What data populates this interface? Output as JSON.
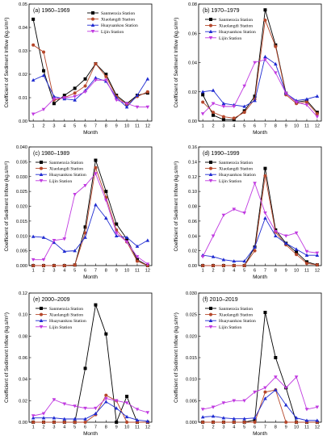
{
  "figure": {
    "series_styles": {
      "Sanmenxia Station": {
        "color": "#000000",
        "marker": "square"
      },
      "Xiaolangdi Station": {
        "color": "#b5462a",
        "marker": "circle"
      },
      "Huayuankou Station": {
        "color": "#1f2bd1",
        "marker": "triangle-up"
      },
      "Lijin Station": {
        "color": "#c03ae0",
        "marker": "triangle-down"
      }
    }
  },
  "chart_data": [
    {
      "type": "line",
      "title": "(a) 1960–1969",
      "xlabel": "Month",
      "ylabel": "Coefficient of Sediment Inflow (kg.s/m⁶)",
      "x": [
        1,
        2,
        3,
        4,
        5,
        6,
        7,
        8,
        9,
        10,
        11,
        12
      ],
      "ylim": [
        0,
        0.05
      ],
      "yticks": [
        "0.00",
        "0.01",
        "0.02",
        "0.03",
        "0.04",
        "0.05"
      ],
      "legend": "top-right",
      "series": [
        {
          "name": "Sanmenxia Station",
          "values": [
            0.0435,
            0.0215,
            0.0075,
            0.011,
            0.014,
            0.018,
            0.0245,
            0.02,
            0.011,
            0.0075,
            0.011,
            0.012
          ]
        },
        {
          "name": "Xiaolangdi Station",
          "values": [
            0.0325,
            0.0295,
            0.009,
            0.01,
            0.012,
            0.015,
            0.0245,
            0.019,
            0.0105,
            0.007,
            0.0105,
            0.0125
          ]
        },
        {
          "name": "Huayuankou Station",
          "values": [
            0.0175,
            0.0195,
            0.0105,
            0.0095,
            0.009,
            0.013,
            0.0185,
            0.017,
            0.01,
            0.006,
            0.011,
            0.018
          ]
        },
        {
          "name": "Lijin Station",
          "values": [
            0.003,
            0.005,
            0.0095,
            0.01,
            0.0105,
            0.0125,
            0.0175,
            0.0175,
            0.009,
            0.0075,
            0.006,
            0.006
          ]
        }
      ]
    },
    {
      "type": "line",
      "title": "(b) 1970–1979",
      "xlabel": "Month",
      "ylabel": "Coefficient of Sediment Inflow (kg.s/m⁶)",
      "x": [
        1,
        2,
        3,
        4,
        5,
        6,
        7,
        8,
        9,
        10,
        11,
        12
      ],
      "ylim": [
        0,
        0.08
      ],
      "yticks": [
        "0.00",
        "0.02",
        "0.04",
        "0.06",
        "0.08"
      ],
      "legend": "top-left",
      "series": [
        {
          "name": "Sanmenxia Station",
          "values": [
            0.018,
            0.004,
            0.001,
            0.001,
            0.007,
            0.017,
            0.076,
            0.052,
            0.019,
            0.013,
            0.014,
            0.006
          ]
        },
        {
          "name": "Xiaolangdi Station",
          "values": [
            0.013,
            0.006,
            0.003,
            0.002,
            0.006,
            0.015,
            0.069,
            0.051,
            0.018,
            0.012,
            0.013,
            0.005
          ]
        },
        {
          "name": "Huayuankou Station",
          "values": [
            0.02,
            0.021,
            0.012,
            0.011,
            0.01,
            0.014,
            0.044,
            0.039,
            0.019,
            0.014,
            0.015,
            0.017
          ]
        },
        {
          "name": "Lijin Station",
          "values": [
            0.005,
            0.012,
            0.01,
            0.01,
            0.024,
            0.04,
            0.042,
            0.033,
            0.019,
            0.013,
            0.011,
            0.003
          ]
        }
      ]
    },
    {
      "type": "line",
      "title": "(c) 1980–1989",
      "xlabel": "Month",
      "ylabel": "Coefficient of Sediment Inflow (kg.s/m⁶)",
      "x": [
        1,
        2,
        3,
        4,
        5,
        6,
        7,
        8,
        9,
        10,
        11,
        12
      ],
      "ylim": [
        0,
        0.04
      ],
      "yticks": [
        "0.000",
        "0.005",
        "0.010",
        "0.015",
        "0.020",
        "0.025",
        "0.030",
        "0.035",
        "0.040"
      ],
      "legend": "top-left",
      "series": [
        {
          "name": "Sanmenxia Station",
          "values": [
            0.0,
            0.0,
            0.0,
            0.0,
            0.0002,
            0.013,
            0.0355,
            0.025,
            0.014,
            0.009,
            0.002,
            0.0
          ]
        },
        {
          "name": "Xiaolangdi Station",
          "values": [
            0.0,
            0.0,
            0.0,
            0.0,
            0.0002,
            0.011,
            0.033,
            0.023,
            0.012,
            0.008,
            0.0015,
            0.0
          ]
        },
        {
          "name": "Huayuankou Station",
          "values": [
            0.0098,
            0.0095,
            0.0078,
            0.0048,
            0.005,
            0.0095,
            0.0205,
            0.016,
            0.01,
            0.0095,
            0.0065,
            0.0085
          ]
        },
        {
          "name": "Lijin Station",
          "values": [
            0.002,
            0.002,
            0.0085,
            0.009,
            0.024,
            0.027,
            0.031,
            0.022,
            0.011,
            0.008,
            0.003,
            0.0005
          ]
        }
      ]
    },
    {
      "type": "line",
      "title": "(d) 1990–1999",
      "xlabel": "Month",
      "ylabel": "Coefficient of Sediment Inflow (kg.s/m⁶)",
      "x": [
        1,
        2,
        3,
        4,
        5,
        6,
        7,
        8,
        9,
        10,
        11,
        12
      ],
      "ylim": [
        0,
        0.16
      ],
      "yticks": [
        "0.00",
        "0.02",
        "0.04",
        "0.06",
        "0.08",
        "0.10",
        "0.12",
        "0.14",
        "0.16"
      ],
      "legend": "top-left",
      "series": [
        {
          "name": "Sanmenxia Station",
          "values": [
            0.0,
            0.0,
            0.0,
            0.0,
            0.0,
            0.025,
            0.131,
            0.048,
            0.03,
            0.018,
            0.005,
            0.001
          ]
        },
        {
          "name": "Xiaolangdi Station",
          "values": [
            0.0,
            0.0,
            0.0,
            0.0,
            0.0,
            0.02,
            0.121,
            0.045,
            0.028,
            0.015,
            0.003,
            0.001
          ]
        },
        {
          "name": "Huayuankou Station",
          "values": [
            0.014,
            0.012,
            0.008,
            0.006,
            0.006,
            0.025,
            0.064,
            0.04,
            0.03,
            0.022,
            0.014,
            0.014
          ]
        },
        {
          "name": "Lijin Station",
          "values": [
            0.012,
            0.04,
            0.068,
            0.076,
            0.071,
            0.111,
            0.071,
            0.046,
            0.04,
            0.044,
            0.019,
            0.017
          ]
        }
      ]
    },
    {
      "type": "line",
      "title": "(e) 2000–2009",
      "xlabel": "Month",
      "ylabel": "Coefficient of Sediment Inflow (kg.s/m⁶)",
      "x": [
        1,
        2,
        3,
        4,
        5,
        6,
        7,
        8,
        9,
        10,
        11,
        12
      ],
      "ylim": [
        0,
        0.12
      ],
      "yticks": [
        "0.00",
        "0.02",
        "0.04",
        "0.06",
        "0.08",
        "0.10",
        "0.12"
      ],
      "legend": "top-left",
      "series": [
        {
          "name": "Sanmenxia Station",
          "values": [
            0.0,
            0.0,
            0.0,
            0.0,
            0.0,
            0.05,
            0.109,
            0.082,
            0.0,
            0.024,
            0.0,
            0.0
          ]
        },
        {
          "name": "Xiaolangdi Station",
          "values": [
            0.0,
            0.0,
            0.0,
            0.0,
            0.0,
            0.0,
            0.007,
            0.025,
            0.02,
            0.0,
            0.0,
            0.0
          ]
        },
        {
          "name": "Huayuankou Station",
          "values": [
            0.004,
            0.004,
            0.004,
            0.003,
            0.003,
            0.003,
            0.008,
            0.019,
            0.013,
            0.005,
            0.002,
            0.001
          ]
        },
        {
          "name": "Lijin Station",
          "values": [
            0.006,
            0.008,
            0.021,
            0.017,
            0.015,
            0.013,
            0.013,
            0.022,
            0.02,
            0.018,
            0.012,
            0.009
          ]
        }
      ]
    },
    {
      "type": "line",
      "title": "(f) 2010–2019",
      "xlabel": "Month",
      "ylabel": "Coefficient of Sediment Inflow (kg.s/m⁶)",
      "x": [
        1,
        2,
        3,
        4,
        5,
        6,
        7,
        8,
        9,
        10,
        11,
        12
      ],
      "ylim": [
        0,
        0.03
      ],
      "yticks": [
        "0.000",
        "0.005",
        "0.010",
        "0.015",
        "0.020",
        "0.025",
        "0.030"
      ],
      "legend": "top-left",
      "series": [
        {
          "name": "Sanmenxia Station",
          "values": [
            0.0,
            0.0,
            0.0,
            0.0,
            0.0,
            0.0005,
            0.0255,
            0.015,
            0.008,
            0.0,
            0.0,
            0.0
          ]
        },
        {
          "name": "Xiaolangdi Station",
          "values": [
            0.0,
            0.0,
            0.0,
            0.0,
            0.0,
            0.0,
            0.007,
            0.0075,
            0.0,
            0.0,
            0.0,
            0.0
          ]
        },
        {
          "name": "Huayuankou Station",
          "values": [
            0.0012,
            0.0014,
            0.001,
            0.0008,
            0.0008,
            0.001,
            0.0055,
            0.0075,
            0.004,
            0.001,
            0.0004,
            0.0004
          ]
        },
        {
          "name": "Lijin Station",
          "values": [
            0.003,
            0.0035,
            0.0045,
            0.005,
            0.005,
            0.007,
            0.008,
            0.0105,
            0.008,
            0.0105,
            0.003,
            0.0035
          ]
        }
      ]
    }
  ]
}
